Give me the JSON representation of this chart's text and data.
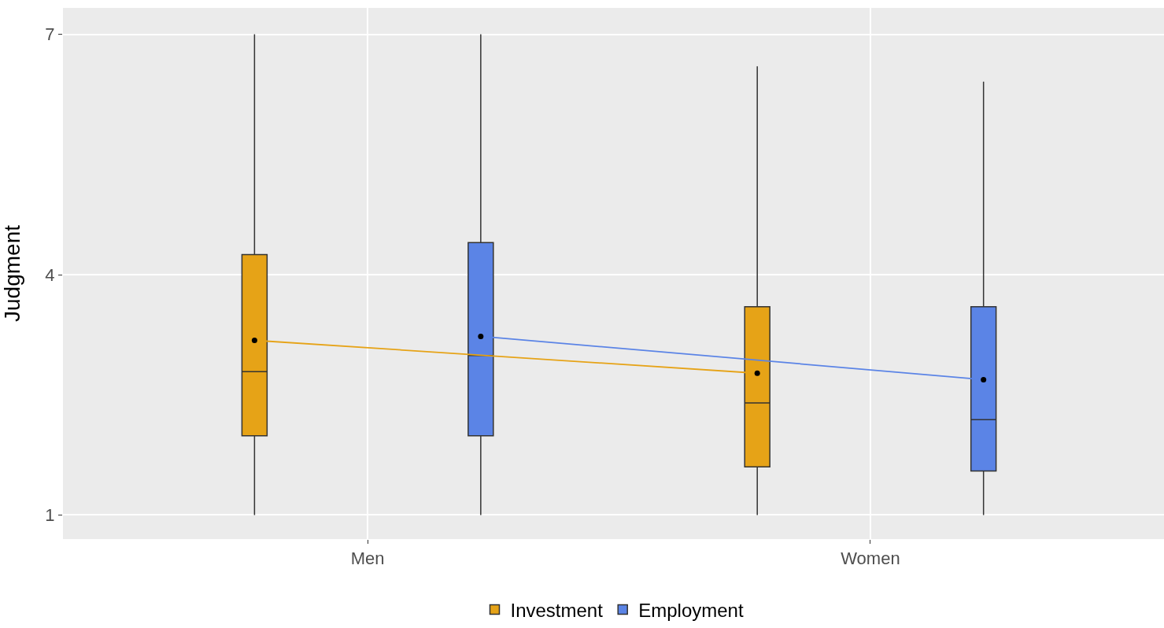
{
  "chart_data": {
    "type": "box",
    "ylabel": "Judgment",
    "categories": [
      "Men",
      "Women"
    ],
    "ylim": [
      0.7,
      7.33
    ],
    "yticks": [
      1,
      4,
      7
    ],
    "grid": true,
    "legend": "bottom",
    "marker": "circle",
    "series": [
      {
        "name": "Investment",
        "color": "#e6a317",
        "boxes": [
          {
            "low": 1,
            "q1": 1.99,
            "median": 2.79,
            "q3": 4.25,
            "high": 7
          },
          {
            "low": 1,
            "q1": 1.6,
            "median": 2.4,
            "q3": 3.6,
            "high": 6.6
          }
        ]
      },
      {
        "name": "Employment",
        "color": "#5b84e6",
        "boxes": [
          {
            "low": 1,
            "q1": 1.99,
            "median": 2.99,
            "q3": 4.4,
            "high": 7
          },
          {
            "low": 1,
            "q1": 1.55,
            "median": 2.19,
            "q3": 3.6,
            "high": 6.41
          }
        ]
      },
      {
        "type": "line",
        "color": "#e6a317",
        "values": [
          3.18,
          2.77
        ]
      },
      {
        "type": "line",
        "color": "#5b84e6",
        "values": [
          3.23,
          2.69
        ]
      }
    ]
  }
}
